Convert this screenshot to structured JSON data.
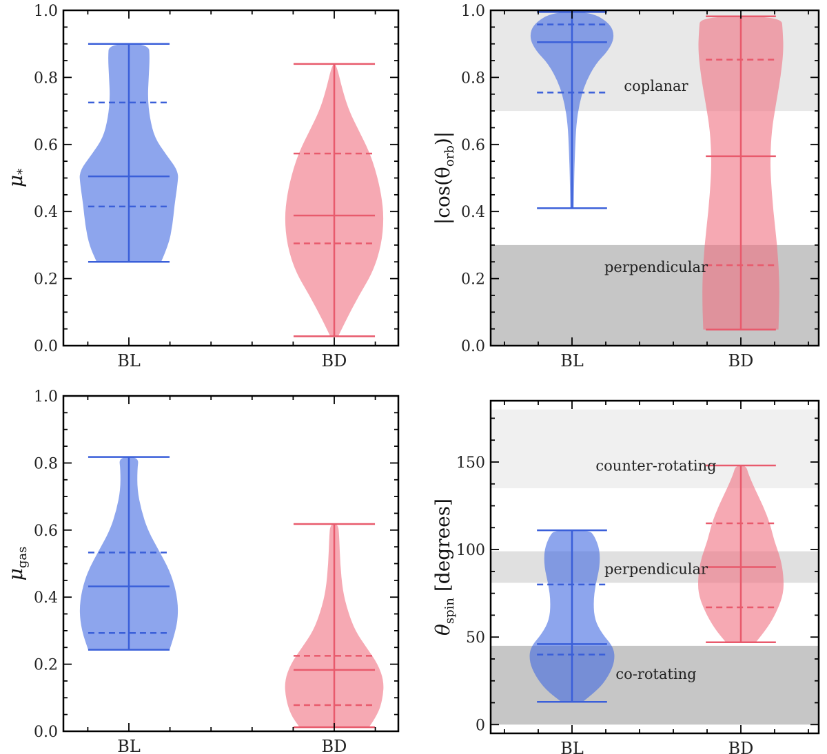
{
  "chart_data": [
    {
      "type": "violin",
      "ylabel_main": "μ",
      "ylabel_sub": "*",
      "categories": [
        "BL",
        "BD"
      ],
      "ylim": [
        0,
        1.0
      ],
      "yticks": [
        0.0,
        0.2,
        0.4,
        0.6,
        0.8,
        1.0
      ],
      "ytick_labels": [
        "0.0",
        "0.2",
        "0.4",
        "0.6",
        "0.8",
        "1.0"
      ],
      "bands": [],
      "violins": [
        {
          "category": "BL",
          "color": "#4169e1",
          "min": 0.25,
          "max": 0.9,
          "median": 0.505,
          "q1": 0.415,
          "q3": 0.725,
          "profile": [
            [
              0.25,
              0.65
            ],
            [
              0.3,
              0.8
            ],
            [
              0.36,
              0.88
            ],
            [
              0.42,
              0.92
            ],
            [
              0.48,
              0.98
            ],
            [
              0.52,
              1.0
            ],
            [
              0.57,
              0.75
            ],
            [
              0.62,
              0.52
            ],
            [
              0.68,
              0.42
            ],
            [
              0.74,
              0.38
            ],
            [
              0.8,
              0.4
            ],
            [
              0.86,
              0.42
            ],
            [
              0.9,
              0.4
            ]
          ]
        },
        {
          "category": "BD",
          "color": "#f07080",
          "min": 0.028,
          "max": 0.84,
          "median": 0.388,
          "q1": 0.305,
          "q3": 0.573,
          "profile": [
            [
              0.028,
              0.08
            ],
            [
              0.08,
              0.25
            ],
            [
              0.15,
              0.5
            ],
            [
              0.22,
              0.78
            ],
            [
              0.3,
              0.95
            ],
            [
              0.38,
              1.0
            ],
            [
              0.45,
              0.95
            ],
            [
              0.52,
              0.84
            ],
            [
              0.58,
              0.7
            ],
            [
              0.64,
              0.5
            ],
            [
              0.7,
              0.3
            ],
            [
              0.76,
              0.17
            ],
            [
              0.84,
              0.04
            ]
          ]
        }
      ]
    },
    {
      "type": "violin",
      "ylabel_text": "|cos(θ",
      "ylabel_sub": "orb",
      "ylabel_end": ")|",
      "categories": [
        "BL",
        "BD"
      ],
      "ylim": [
        0,
        1.0
      ],
      "yticks": [
        0.0,
        0.2,
        0.4,
        0.6,
        0.8,
        1.0
      ],
      "ytick_labels": [
        "0.0",
        "0.2",
        "0.4",
        "0.6",
        "0.8",
        "1.0"
      ],
      "bands": [
        {
          "from": 0.7,
          "to": 1.0,
          "color": "#e8e8e8",
          "label": "coplanar",
          "label_y": 0.76
        },
        {
          "from": 0.0,
          "to": 0.3,
          "color": "#c6c6c6",
          "label": "perpendicular",
          "label_y": 0.22
        }
      ],
      "violins": [
        {
          "category": "BL",
          "color": "#4169e1",
          "min": 0.41,
          "max": 0.995,
          "median": 0.905,
          "q1": 0.755,
          "q3": 0.958,
          "profile": [
            [
              0.41,
              0.04
            ],
            [
              0.5,
              0.05
            ],
            [
              0.58,
              0.07
            ],
            [
              0.66,
              0.1
            ],
            [
              0.72,
              0.17
            ],
            [
              0.78,
              0.3
            ],
            [
              0.84,
              0.55
            ],
            [
              0.88,
              0.85
            ],
            [
              0.92,
              1.0
            ],
            [
              0.96,
              0.9
            ],
            [
              0.995,
              0.45
            ]
          ]
        },
        {
          "category": "BD",
          "color": "#f07080",
          "min": 0.048,
          "max": 0.982,
          "median": 0.565,
          "q1": 0.24,
          "q3": 0.853,
          "profile": [
            [
              0.048,
              0.88
            ],
            [
              0.12,
              0.9
            ],
            [
              0.2,
              0.9
            ],
            [
              0.3,
              0.85
            ],
            [
              0.4,
              0.76
            ],
            [
              0.5,
              0.7
            ],
            [
              0.56,
              0.69
            ],
            [
              0.64,
              0.72
            ],
            [
              0.72,
              0.82
            ],
            [
              0.8,
              0.93
            ],
            [
              0.88,
              1.0
            ],
            [
              0.94,
              0.98
            ],
            [
              0.982,
              0.95
            ]
          ]
        }
      ]
    },
    {
      "type": "violin",
      "ylabel_main": "μ",
      "ylabel_sub": "gas",
      "categories": [
        "BL",
        "BD"
      ],
      "ylim": [
        0,
        1.0
      ],
      "yticks": [
        0.0,
        0.2,
        0.4,
        0.6,
        0.8,
        1.0
      ],
      "ytick_labels": [
        "0.0",
        "0.2",
        "0.4",
        "0.6",
        "0.8",
        "1.0"
      ],
      "bands": [],
      "violins": [
        {
          "category": "BL",
          "color": "#4169e1",
          "min": 0.243,
          "max": 0.818,
          "median": 0.432,
          "q1": 0.293,
          "q3": 0.533,
          "profile": [
            [
              0.243,
              0.82
            ],
            [
              0.3,
              0.95
            ],
            [
              0.36,
              1.0
            ],
            [
              0.42,
              0.95
            ],
            [
              0.48,
              0.82
            ],
            [
              0.54,
              0.6
            ],
            [
              0.6,
              0.38
            ],
            [
              0.66,
              0.25
            ],
            [
              0.72,
              0.17
            ],
            [
              0.78,
              0.17
            ],
            [
              0.818,
              0.2
            ]
          ]
        },
        {
          "category": "BD",
          "color": "#f07080",
          "min": 0.012,
          "max": 0.618,
          "median": 0.183,
          "q1": 0.078,
          "q3": 0.225,
          "profile": [
            [
              0.012,
              0.7
            ],
            [
              0.05,
              0.88
            ],
            [
              0.1,
              0.98
            ],
            [
              0.15,
              1.0
            ],
            [
              0.2,
              0.88
            ],
            [
              0.25,
              0.65
            ],
            [
              0.3,
              0.42
            ],
            [
              0.36,
              0.27
            ],
            [
              0.42,
              0.17
            ],
            [
              0.5,
              0.12
            ],
            [
              0.58,
              0.1
            ],
            [
              0.618,
              0.08
            ]
          ]
        }
      ]
    },
    {
      "type": "violin",
      "ylabel_main": "θ",
      "ylabel_sub": "spin",
      "ylabel_end": " [degrees]",
      "categories": [
        "BL",
        "BD"
      ],
      "ylim": [
        -5,
        185
      ],
      "yticks": [
        0,
        50,
        100,
        150
      ],
      "ytick_labels": [
        "0",
        "50",
        "100",
        "150"
      ],
      "bands": [
        {
          "from": 135,
          "to": 180,
          "color": "#f0f0f0",
          "label": "counter-rotating",
          "label_y": 145
        },
        {
          "from": 81,
          "to": 99,
          "color": "#e0e0e0",
          "label": "perpendicular",
          "label_y": 86
        },
        {
          "from": 0,
          "to": 45,
          "color": "#c6c6c6",
          "label": "co-rotating",
          "label_y": 26
        }
      ],
      "violins": [
        {
          "category": "BL",
          "color": "#4169e1",
          "min": 13,
          "max": 111,
          "median": 46,
          "q1": 40,
          "q3": 80,
          "profile": [
            [
              13,
              0.25
            ],
            [
              20,
              0.62
            ],
            [
              28,
              0.86
            ],
            [
              36,
              1.0
            ],
            [
              44,
              0.98
            ],
            [
              52,
              0.7
            ],
            [
              60,
              0.53
            ],
            [
              70,
              0.5
            ],
            [
              80,
              0.55
            ],
            [
              90,
              0.65
            ],
            [
              100,
              0.65
            ],
            [
              108,
              0.52
            ],
            [
              111,
              0.4
            ]
          ]
        },
        {
          "category": "BD",
          "color": "#f07080",
          "min": 47,
          "max": 148,
          "median": 90,
          "q1": 67,
          "q3": 115,
          "profile": [
            [
              47,
              0.35
            ],
            [
              55,
              0.62
            ],
            [
              65,
              0.85
            ],
            [
              75,
              1.0
            ],
            [
              85,
              1.0
            ],
            [
              95,
              0.93
            ],
            [
              105,
              0.78
            ],
            [
              115,
              0.68
            ],
            [
              125,
              0.52
            ],
            [
              135,
              0.32
            ],
            [
              143,
              0.18
            ],
            [
              148,
              0.12
            ]
          ]
        }
      ]
    }
  ]
}
